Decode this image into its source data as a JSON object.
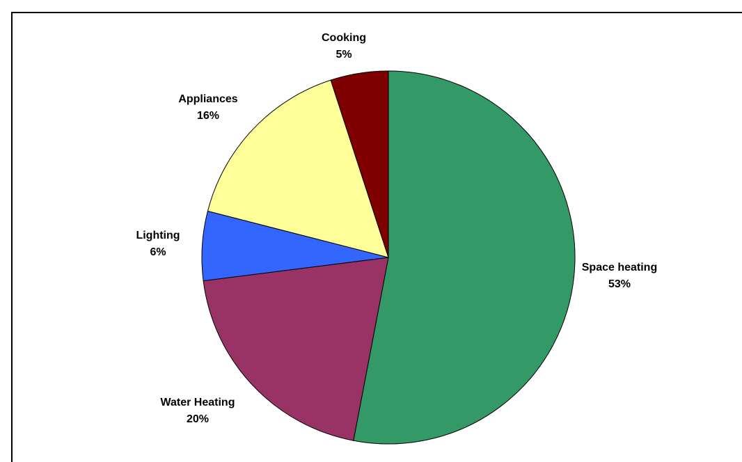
{
  "chart_data": {
    "type": "pie",
    "start_angle_deg": 0,
    "direction": "clockwise",
    "slices": [
      {
        "label": "Space heating",
        "value": 53,
        "value_label": "53%",
        "color": "#339966"
      },
      {
        "label": "Water Heating",
        "value": 20,
        "value_label": "20%",
        "color": "#993366"
      },
      {
        "label": "Lighting",
        "value": 6,
        "value_label": "6%",
        "color": "#3366ff"
      },
      {
        "label": "Appliances",
        "value": 16,
        "value_label": "16%",
        "color": "#ffff99"
      },
      {
        "label": "Cooking",
        "value": 5,
        "value_label": "5%",
        "color": "#800000"
      }
    ]
  }
}
